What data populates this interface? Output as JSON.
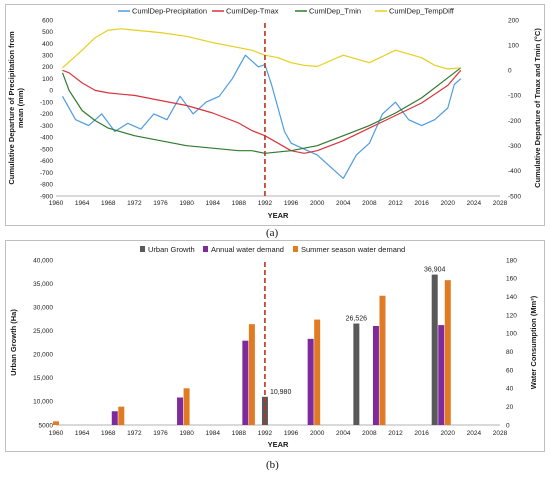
{
  "chart_data": [
    {
      "id": "a",
      "type": "line",
      "caption": "(a)",
      "xlabel": "YEAR",
      "ylabel": "Cumulative Departure of Precipitation from mean (mm)",
      "y2label": "Cumulative Departure of Tmax and Tmin (°C)",
      "xlim": [
        1960,
        2028
      ],
      "x_ticks": [
        1960,
        1964,
        1968,
        1972,
        1976,
        1980,
        1984,
        1988,
        1992,
        1996,
        2000,
        2004,
        2008,
        2012,
        2016,
        2020,
        2024,
        2028
      ],
      "ylim": [
        -900,
        600
      ],
      "y_ticks": [
        600,
        500,
        400,
        300,
        200,
        100,
        0,
        -100,
        -200,
        -300,
        -400,
        -500,
        -600,
        -700,
        -800,
        -900
      ],
      "y2lim": [
        -500,
        200
      ],
      "y2_ticks": [
        200,
        100,
        0,
        -100,
        -200,
        -300,
        -400,
        -500
      ],
      "marker_line_x": 1992,
      "legend_position": "top",
      "grid": false,
      "colors": {
        "precip": "#4f9be0",
        "tmax": "#d9343c",
        "tmin": "#2f7a2f",
        "tempdiff": "#e6cf1f",
        "marker": "#b8341f"
      },
      "series": [
        {
          "name": "CumlDep-Precipitation",
          "axis": "left",
          "x": [
            1961,
            1963,
            1965,
            1967,
            1969,
            1971,
            1973,
            1975,
            1977,
            1979,
            1981,
            1983,
            1985,
            1987,
            1988,
            1989,
            1990,
            1991,
            1992,
            1993,
            1994,
            1995,
            1996,
            1998,
            2000,
            2002,
            2004,
            2006,
            2008,
            2010,
            2012,
            2014,
            2016,
            2018,
            2020,
            2021,
            2022
          ],
          "y": [
            -50,
            -250,
            -300,
            -200,
            -350,
            -280,
            -330,
            -200,
            -250,
            -50,
            -200,
            -100,
            -50,
            100,
            200,
            300,
            250,
            200,
            220,
            50,
            -150,
            -350,
            -450,
            -500,
            -550,
            -650,
            -750,
            -550,
            -450,
            -200,
            -100,
            -250,
            -300,
            -250,
            -150,
            50,
            100
          ]
        },
        {
          "name": "CumlDep-Tmax",
          "axis": "right",
          "x": [
            1961,
            1962,
            1964,
            1966,
            1968,
            1970,
            1972,
            1976,
            1980,
            1984,
            1988,
            1990,
            1992,
            1994,
            1996,
            1998,
            2000,
            2004,
            2008,
            2012,
            2016,
            2020,
            2022
          ],
          "y": [
            0,
            -10,
            -50,
            -80,
            -90,
            -95,
            -100,
            -120,
            -140,
            -170,
            -210,
            -240,
            -260,
            -290,
            -320,
            -330,
            -320,
            -280,
            -230,
            -180,
            -130,
            -60,
            0
          ]
        },
        {
          "name": "CumlDep_Tmin",
          "axis": "right",
          "x": [
            1961,
            1962,
            1964,
            1966,
            1968,
            1972,
            1976,
            1980,
            1984,
            1988,
            1990,
            1992,
            1996,
            2000,
            2004,
            2008,
            2012,
            2016,
            2020,
            2022
          ],
          "y": [
            -10,
            -80,
            -160,
            -200,
            -230,
            -260,
            -280,
            -300,
            -310,
            -320,
            -320,
            -330,
            -320,
            -300,
            -260,
            -220,
            -170,
            -110,
            -30,
            10
          ]
        },
        {
          "name": "CumlDep_TempDiff",
          "axis": "right",
          "x": [
            1961,
            1964,
            1966,
            1968,
            1970,
            1972,
            1976,
            1980,
            1984,
            1988,
            1990,
            1992,
            1994,
            1996,
            1998,
            2000,
            2004,
            2008,
            2012,
            2016,
            2018,
            2020,
            2022
          ],
          "y": [
            10,
            80,
            130,
            160,
            165,
            160,
            150,
            135,
            110,
            90,
            80,
            60,
            50,
            30,
            20,
            15,
            60,
            30,
            80,
            50,
            20,
            5,
            10
          ]
        }
      ]
    },
    {
      "id": "b",
      "type": "bar",
      "caption": "(b)",
      "xlabel": "YEAR",
      "ylabel": "Urban Growth (Ha)",
      "y2label": "Water Consumption (Mm³)",
      "xlim": [
        1960,
        2028
      ],
      "x_ticks": [
        1960,
        1964,
        1968,
        1972,
        1976,
        1980,
        1984,
        1988,
        1992,
        1996,
        2000,
        2004,
        2008,
        2012,
        2016,
        2020,
        2024,
        2028
      ],
      "ylim": [
        5000,
        40000
      ],
      "y_ticks": [
        40000,
        35000,
        30000,
        25000,
        20000,
        15000,
        10000,
        5000
      ],
      "y_tick_labels": [
        "40,000",
        "35,000",
        "30,000",
        "25,000",
        "20,000",
        "15,000",
        "10,000",
        "5000"
      ],
      "y2lim": [
        0,
        180
      ],
      "y2_ticks": [
        180,
        160,
        140,
        120,
        100,
        80,
        60,
        40,
        20,
        0
      ],
      "marker_line_x": 1992,
      "legend_position": "top",
      "grid": false,
      "colors": {
        "urban": "#595959",
        "annual": "#7e2a9c",
        "summer": "#e07b24",
        "marker": "#b8341f"
      },
      "series": [
        {
          "name": "Urban Growth",
          "axis": "left",
          "x": [
            1992,
            2006,
            2018
          ],
          "y": [
            10980,
            26526,
            36904
          ],
          "labels": [
            "10,980",
            "26,526",
            "36,904"
          ]
        },
        {
          "name": "Annual water demand",
          "axis": "right",
          "x": [
            1960,
            1969,
            1979,
            1989,
            1999,
            2009,
            2019
          ],
          "y": [
            3,
            15,
            30,
            92,
            94,
            108,
            109
          ]
        },
        {
          "name": "Summer season water demand",
          "axis": "right",
          "x": [
            1960,
            1970,
            1980,
            1990,
            2000,
            2010,
            2020
          ],
          "y": [
            4,
            20,
            40,
            110,
            115,
            141,
            158
          ]
        }
      ]
    }
  ]
}
